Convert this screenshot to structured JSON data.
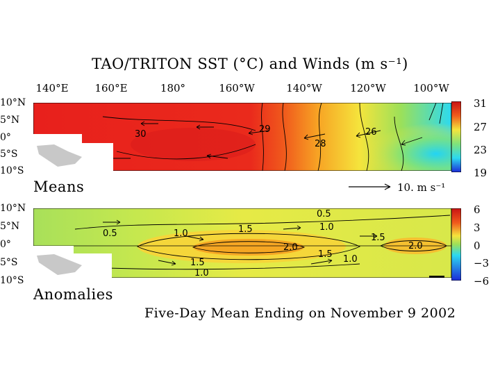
{
  "title": "TAO/TRITON SST (°C) and Winds (m s⁻¹)",
  "longitudes": [
    "140°E",
    "160°E",
    "180°",
    "160°W",
    "140°W",
    "120°W",
    "100°W"
  ],
  "latitudes": [
    "10°N",
    "5°N",
    "0°",
    "5°S",
    "10°S"
  ],
  "means_panel": {
    "label": "Means",
    "contour_labels": [
      "30",
      "29",
      "28",
      "26"
    ],
    "colorbar_ticks": [
      "31",
      "27",
      "23",
      "19"
    ],
    "reference_vector": "10.  m s⁻¹"
  },
  "anomalies_panel": {
    "label": "Anomalies",
    "contour_labels": [
      "0.5",
      "0.5",
      "1.0",
      "1.5",
      "2.0",
      "1.0",
      "1.5",
      "1.5",
      "1.0",
      "2.0",
      "1.5",
      "1.0"
    ],
    "colorbar_ticks": [
      "6",
      "3",
      "0",
      "−3",
      "−6"
    ]
  },
  "footer": "Five-Day Mean Ending on November 9 2002",
  "colors": {
    "warm": "#e8201c",
    "orange": "#f57f1a",
    "yellow": "#f5e43c",
    "green": "#9be05a",
    "cyan": "#2cd9f0",
    "land": "#c8c8c8"
  }
}
